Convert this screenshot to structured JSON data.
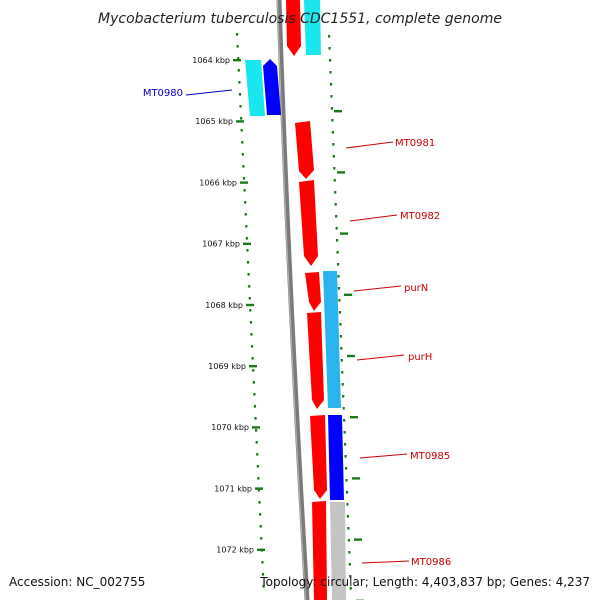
{
  "title": "Mycobacterium tuberculosis CDC1551, complete genome",
  "accession_text": "Accession: NC_002755",
  "topology_text": "Topology: circular; Length: 4,403,837 bp; Genes: 4,237",
  "colors": {
    "forward": "#ff0000",
    "reverse": "#0000ff",
    "cyan": "#19e6ee",
    "sky": "#2ab4ee",
    "gray": "#c4c4c4",
    "backbone": "#7a7a7a",
    "ticks": "#1a7a1a",
    "label_forward": "#cc0000",
    "label_reverse": "#0000cc"
  },
  "ticks": [
    "1064 kbp",
    "1065 kbp",
    "1066 kbp",
    "1067 kbp",
    "1068 kbp",
    "1069 kbp",
    "1070 kbp",
    "1071 kbp",
    "1072 kbp"
  ],
  "gene_labels": [
    {
      "text": "MT0980",
      "strand": "reverse"
    },
    {
      "text": "MT0981",
      "strand": "forward"
    },
    {
      "text": "MT0982",
      "strand": "forward"
    },
    {
      "text": "purN",
      "strand": "forward"
    },
    {
      "text": "purH",
      "strand": "forward"
    },
    {
      "text": "MT0985",
      "strand": "forward"
    },
    {
      "text": "MT0986",
      "strand": "forward"
    }
  ]
}
